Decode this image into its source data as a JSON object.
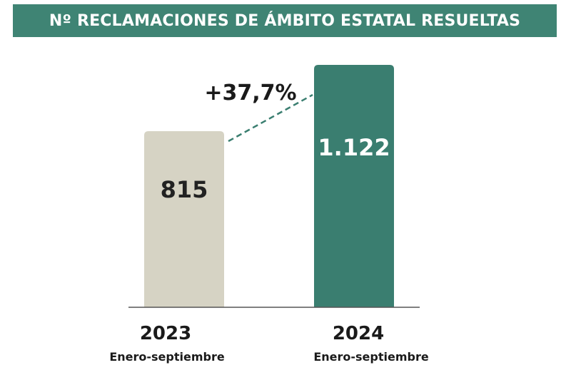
{
  "title": "Nº RECLAMACIONES DE ÁMBITO ESTATAL RESUELTAS",
  "colors": {
    "header": "#3f8474",
    "bar_2023": "#d6d3c4",
    "bar_2024": "#3a7e70",
    "axis": "#555555"
  },
  "chart_data": {
    "type": "bar",
    "categories": [
      "2023",
      "2024"
    ],
    "category_sublabels": [
      "Enero-septiembre",
      "Enero-septiembre"
    ],
    "values": [
      815,
      1122
    ],
    "value_labels": [
      "815",
      "1.122"
    ],
    "change_label": "+37,7%",
    "ylim": [
      0,
      1122
    ],
    "grid": false,
    "legend": "none"
  }
}
